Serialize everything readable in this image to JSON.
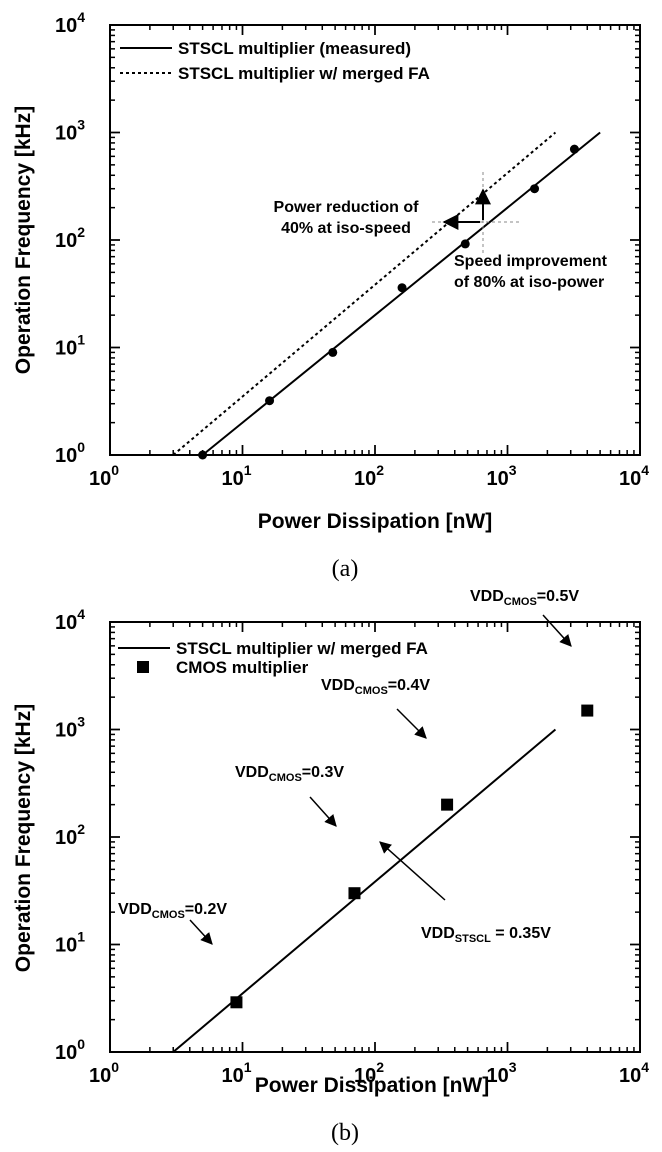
{
  "chart_data": [
    {
      "type": "scatter",
      "panel_label": "(a)",
      "xlabel": "Power Dissipation [nW]",
      "ylabel": "Operation Frequency [kHz]",
      "xscale": "log",
      "yscale": "log",
      "xlim": [
        1,
        10000
      ],
      "ylim": [
        1,
        10000
      ],
      "x_ticks": [
        {
          "base": "10",
          "exp": "0",
          "value": 1
        },
        {
          "base": "10",
          "exp": "1",
          "value": 10
        },
        {
          "base": "10",
          "exp": "2",
          "value": 100
        },
        {
          "base": "10",
          "exp": "3",
          "value": 1000
        },
        {
          "base": "10",
          "exp": "4",
          "value": 10000
        }
      ],
      "y_ticks": [
        {
          "base": "10",
          "exp": "0",
          "value": 1
        },
        {
          "base": "10",
          "exp": "1",
          "value": 10
        },
        {
          "base": "10",
          "exp": "2",
          "value": 100
        },
        {
          "base": "10",
          "exp": "3",
          "value": 1000
        },
        {
          "base": "10",
          "exp": "4",
          "value": 10000
        }
      ],
      "legend": "top-left",
      "series": [
        {
          "name": "STSCL multiplier (measured)",
          "kind": "line",
          "style": "solid",
          "x": [
            5,
            5000
          ],
          "y": [
            1,
            1000
          ]
        },
        {
          "name": "STSCL multiplier w/ merged FA",
          "kind": "line",
          "style": "dotted",
          "x": [
            3,
            2300
          ],
          "y": [
            1,
            1000
          ]
        },
        {
          "kind": "points",
          "marker": "circle",
          "x": [
            5,
            16,
            48,
            160,
            480,
            1600,
            3200
          ],
          "y": [
            1,
            3.2,
            9,
            36,
            92,
            300,
            700
          ]
        }
      ],
      "annotations": [
        {
          "lines": [
            "Power reduction of",
            "40% at iso-speed"
          ]
        },
        {
          "lines": [
            "Speed improvement",
            "of 80% at iso-power"
          ]
        }
      ]
    },
    {
      "type": "scatter",
      "panel_label": "(b)",
      "xlabel": "Power Dissipation [nW]",
      "ylabel": "Operation Frequency [kHz]",
      "xscale": "log",
      "yscale": "log",
      "xlim": [
        1,
        10000
      ],
      "ylim": [
        1,
        10000
      ],
      "x_ticks": [
        {
          "base": "10",
          "exp": "0",
          "value": 1
        },
        {
          "base": "10",
          "exp": "1",
          "value": 10
        },
        {
          "base": "10",
          "exp": "2",
          "value": 100
        },
        {
          "base": "10",
          "exp": "3",
          "value": 1000
        },
        {
          "base": "10",
          "exp": "4",
          "value": 10000
        }
      ],
      "y_ticks": [
        {
          "base": "10",
          "exp": "0",
          "value": 1
        },
        {
          "base": "10",
          "exp": "1",
          "value": 10
        },
        {
          "base": "10",
          "exp": "2",
          "value": 100
        },
        {
          "base": "10",
          "exp": "3",
          "value": 1000
        },
        {
          "base": "10",
          "exp": "4",
          "value": 10000
        }
      ],
      "legend": "top-left",
      "series": [
        {
          "name": "STSCL multiplier w/ merged FA",
          "kind": "line",
          "style": "solid",
          "x": [
            3,
            2300
          ],
          "y": [
            1,
            1000
          ]
        },
        {
          "name": "CMOS multiplier",
          "kind": "points",
          "marker": "square",
          "x": [
            9,
            70,
            350,
            4000
          ],
          "y": [
            2.9,
            30,
            200,
            1500
          ]
        }
      ],
      "annotations": [
        {
          "main": "VDD",
          "sub": "CMOS",
          "rest": "=0.2V"
        },
        {
          "main": "VDD",
          "sub": "CMOS",
          "rest": "=0.3V"
        },
        {
          "main": "VDD",
          "sub": "CMOS",
          "rest": "=0.4V"
        },
        {
          "main": "VDD",
          "sub": "CMOS",
          "rest": "=0.5V"
        },
        {
          "main": "VDD",
          "sub": "STSCL",
          "rest": " = 0.35V"
        }
      ]
    }
  ]
}
